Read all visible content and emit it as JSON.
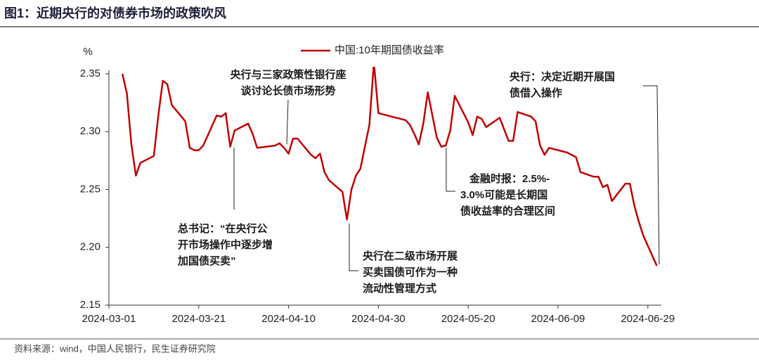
{
  "chart_data": {
    "type": "line",
    "title": "图1：近期央行的对债券市场的政策吹风",
    "source": "资料来源：wind，中国人民银行，民生证券研究院",
    "y_label": "%",
    "x": [
      "2024-03-04",
      "2024-03-05",
      "2024-03-06",
      "2024-03-07",
      "2024-03-08",
      "2024-03-11",
      "2024-03-12",
      "2024-03-13",
      "2024-03-14",
      "2024-03-15",
      "2024-03-18",
      "2024-03-19",
      "2024-03-20",
      "2024-03-21",
      "2024-03-22",
      "2024-03-25",
      "2024-03-26",
      "2024-03-27",
      "2024-03-28",
      "2024-03-29",
      "2024-04-01",
      "2024-04-02",
      "2024-04-03",
      "2024-04-07",
      "2024-04-08",
      "2024-04-09",
      "2024-04-10",
      "2024-04-11",
      "2024-04-12",
      "2024-04-15",
      "2024-04-16",
      "2024-04-17",
      "2024-04-18",
      "2024-04-19",
      "2024-04-22",
      "2024-04-23",
      "2024-04-24",
      "2024-04-25",
      "2024-04-26",
      "2024-04-28",
      "2024-04-29",
      "2024-04-30",
      "2024-05-06",
      "2024-05-07",
      "2024-05-08",
      "2024-05-09",
      "2024-05-10",
      "2024-05-11",
      "2024-05-13",
      "2024-05-14",
      "2024-05-15",
      "2024-05-16",
      "2024-05-17",
      "2024-05-20",
      "2024-05-21",
      "2024-05-22",
      "2024-05-23",
      "2024-05-24",
      "2024-05-27",
      "2024-05-28",
      "2024-05-29",
      "2024-05-30",
      "2024-05-31",
      "2024-06-03",
      "2024-06-04",
      "2024-06-05",
      "2024-06-06",
      "2024-06-07",
      "2024-06-11",
      "2024-06-12",
      "2024-06-13",
      "2024-06-14",
      "2024-06-17",
      "2024-06-18",
      "2024-06-19",
      "2024-06-20",
      "2024-06-21",
      "2024-06-24",
      "2024-06-25",
      "2024-06-26",
      "2024-06-27",
      "2024-06-28",
      "2024-07-01"
    ],
    "series": [
      {
        "name": "中国:10年期国债收益率",
        "color": "#c00000",
        "values": [
          2.35,
          2.333,
          2.289,
          2.262,
          2.273,
          2.279,
          2.314,
          2.344,
          2.341,
          2.323,
          2.309,
          2.286,
          2.284,
          2.284,
          2.288,
          2.314,
          2.313,
          2.316,
          2.287,
          2.301,
          2.307,
          2.298,
          2.286,
          2.288,
          2.29,
          2.286,
          2.281,
          2.294,
          2.294,
          2.28,
          2.277,
          2.281,
          2.265,
          2.258,
          2.248,
          2.224,
          2.25,
          2.262,
          2.268,
          2.306,
          2.36,
          2.316,
          2.31,
          2.306,
          2.298,
          2.289,
          2.307,
          2.334,
          2.295,
          2.287,
          2.288,
          2.301,
          2.331,
          2.308,
          2.297,
          2.313,
          2.311,
          2.304,
          2.312,
          2.302,
          2.292,
          2.292,
          2.317,
          2.313,
          2.309,
          2.288,
          2.28,
          2.286,
          2.282,
          2.28,
          2.278,
          2.265,
          2.261,
          2.261,
          2.252,
          2.254,
          2.24,
          2.255,
          2.255,
          2.236,
          2.222,
          2.21,
          2.184
        ]
      }
    ],
    "xlim": [
      "2024-03-01",
      "2024-07-02"
    ],
    "xticks": [
      "2024-03-01",
      "2024-03-21",
      "2024-04-10",
      "2024-04-30",
      "2024-05-20",
      "2024-06-09",
      "2024-06-29"
    ],
    "ylim": [
      2.15,
      2.35
    ],
    "yticks": [
      2.15,
      {
        "value": 2.2,
        "label": "2.20"
      },
      2.25,
      {
        "value": 2.3,
        "label": "2.30"
      },
      2.35
    ],
    "grid": false,
    "legend": "top",
    "annotations": [
      {
        "lines": [
          "央行与三家政策性银行座",
          "谈讨论长债市场形势"
        ]
      },
      {
        "lines": [
          "总书记：“在央行公",
          "开市场操作中逐步增",
          "加国债买卖”"
        ]
      },
      {
        "lines": [
          "央行在二级市场开展",
          "买卖国债可作为一种",
          "流动性管理方式"
        ]
      },
      {
        "lines": [
          "金融时报：2.5%-",
          "3.0%可能是长期国",
          "债收益率的合理区间"
        ]
      },
      {
        "lines": [
          "央行：决定近期开展国",
          "债借入操作"
        ]
      }
    ]
  }
}
